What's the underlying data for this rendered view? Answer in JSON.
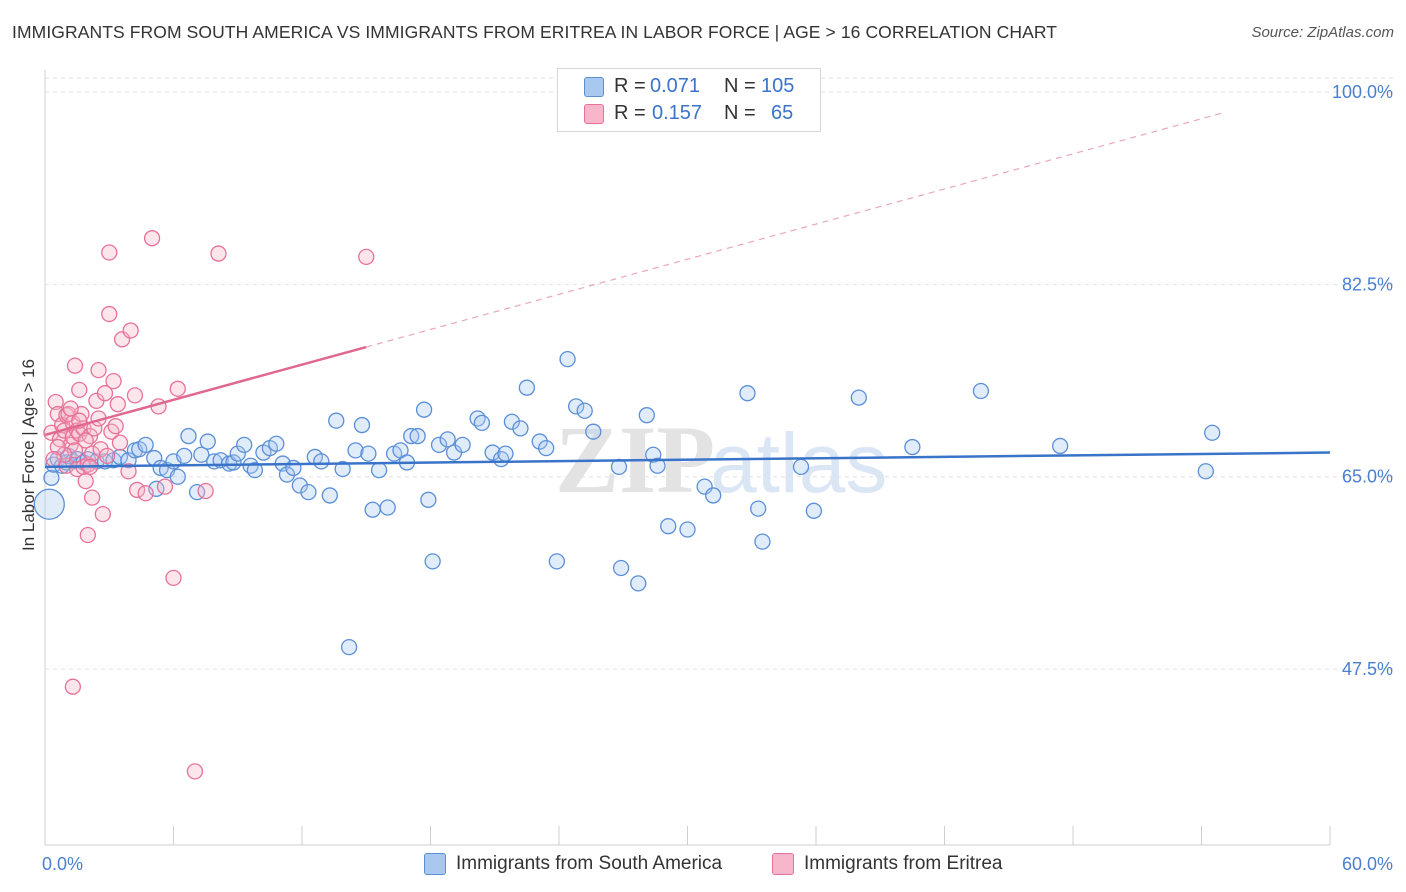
{
  "title": "IMMIGRANTS FROM SOUTH AMERICA VS IMMIGRANTS FROM ERITREA IN LABOR FORCE | AGE > 16 CORRELATION CHART",
  "source": "Source: ZipAtlas.com",
  "watermark": {
    "zip": "ZIP",
    "atlas": "atlas"
  },
  "legend_top": {
    "rows": [
      {
        "r_label": "R =",
        "r_value": "0.071",
        "n_label": "N =",
        "n_value": "105"
      },
      {
        "r_label": "R =",
        "r_value": "0.157",
        "n_label": "N =",
        "n_value": "65"
      }
    ]
  },
  "legend_bottom": {
    "items": [
      {
        "label": "Immigrants from South America"
      },
      {
        "label": "Immigrants from Eritrea"
      }
    ]
  },
  "colors": {
    "blue_fill": "#a9c8f0",
    "blue_stroke": "#5a8fd8",
    "blue_line": "#3a74c9",
    "pink_fill": "#f7b6c9",
    "pink_stroke": "#e8719a",
    "pink_line": "#e06890",
    "axis_text": "#4a7fd0",
    "grid": "#e2e2e2"
  },
  "chart_data": {
    "type": "scatter",
    "title": "IMMIGRANTS FROM SOUTH AMERICA VS IMMIGRANTS FROM ERITREA IN LABOR FORCE | AGE > 16 CORRELATION CHART",
    "xlabel": "",
    "ylabel": "In Labor Force | Age > 16",
    "xlim": [
      0,
      60
    ],
    "ylim": [
      31.5,
      102
    ],
    "x_tick_labels": [
      {
        "value": 0,
        "label": "0.0%"
      },
      {
        "value": 60,
        "label": "60.0%"
      }
    ],
    "x_minor_ticks": [
      6,
      12,
      18,
      24,
      30,
      36,
      42,
      48,
      54,
      60
    ],
    "y_ticks": [
      {
        "value": 100,
        "label": "100.0%"
      },
      {
        "value": 82.5,
        "label": "82.5%"
      },
      {
        "value": 65,
        "label": "65.0%"
      },
      {
        "value": 47.5,
        "label": "47.5%"
      }
    ],
    "series": [
      {
        "name": "Immigrants from South America",
        "R": 0.071,
        "N": 105,
        "trend": {
          "x": [
            0,
            60
          ],
          "y": [
            65.9,
            67.2
          ]
        },
        "points": [
          [
            0.3,
            64.9
          ],
          [
            0.4,
            66.1
          ],
          [
            0.6,
            66.6
          ],
          [
            0.8,
            66.0
          ],
          [
            1.0,
            66.3
          ],
          [
            1.1,
            66.9
          ],
          [
            1.3,
            66.4
          ],
          [
            1.5,
            66.6
          ],
          [
            1.8,
            66.3
          ],
          [
            2.0,
            66.6
          ],
          [
            2.4,
            66.4
          ],
          [
            2.8,
            66.4
          ],
          [
            3.2,
            66.5
          ],
          [
            3.5,
            66.8
          ],
          [
            3.9,
            66.5
          ],
          [
            4.2,
            67.4
          ],
          [
            4.4,
            67.5
          ],
          [
            4.7,
            67.9
          ],
          [
            5.1,
            66.7
          ],
          [
            5.2,
            63.9
          ],
          [
            5.4,
            65.8
          ],
          [
            5.7,
            65.6
          ],
          [
            6.0,
            66.4
          ],
          [
            6.2,
            65.0
          ],
          [
            6.5,
            66.9
          ],
          [
            6.7,
            68.7
          ],
          [
            7.1,
            63.6
          ],
          [
            7.3,
            67.0
          ],
          [
            7.6,
            68.2
          ],
          [
            7.9,
            66.4
          ],
          [
            8.2,
            66.5
          ],
          [
            8.6,
            66.2
          ],
          [
            8.8,
            66.3
          ],
          [
            9.0,
            67.1
          ],
          [
            9.3,
            67.9
          ],
          [
            9.6,
            66.0
          ],
          [
            9.8,
            65.6
          ],
          [
            10.2,
            67.2
          ],
          [
            10.5,
            67.6
          ],
          [
            10.8,
            68.0
          ],
          [
            11.1,
            66.2
          ],
          [
            11.3,
            65.2
          ],
          [
            11.6,
            65.8
          ],
          [
            11.9,
            64.2
          ],
          [
            12.3,
            63.6
          ],
          [
            12.6,
            66.8
          ],
          [
            12.9,
            66.4
          ],
          [
            13.3,
            63.3
          ],
          [
            13.6,
            70.1
          ],
          [
            13.9,
            65.7
          ],
          [
            14.2,
            49.5
          ],
          [
            14.5,
            67.4
          ],
          [
            14.8,
            69.7
          ],
          [
            15.1,
            67.1
          ],
          [
            15.3,
            62.0
          ],
          [
            15.6,
            65.6
          ],
          [
            16.0,
            62.2
          ],
          [
            16.3,
            67.1
          ],
          [
            16.6,
            67.4
          ],
          [
            16.9,
            66.3
          ],
          [
            17.1,
            68.7
          ],
          [
            17.4,
            68.7
          ],
          [
            17.7,
            71.1
          ],
          [
            17.9,
            62.9
          ],
          [
            18.1,
            57.3
          ],
          [
            18.4,
            67.9
          ],
          [
            18.8,
            68.4
          ],
          [
            19.1,
            67.2
          ],
          [
            19.5,
            67.9
          ],
          [
            20.2,
            70.3
          ],
          [
            20.4,
            69.9
          ],
          [
            20.9,
            67.2
          ],
          [
            21.3,
            66.6
          ],
          [
            21.5,
            67.1
          ],
          [
            21.8,
            70.0
          ],
          [
            22.2,
            69.4
          ],
          [
            22.5,
            73.1
          ],
          [
            23.1,
            68.2
          ],
          [
            23.4,
            67.6
          ],
          [
            23.9,
            57.3
          ],
          [
            24.4,
            75.7
          ],
          [
            24.8,
            71.4
          ],
          [
            25.2,
            71.0
          ],
          [
            25.6,
            69.1
          ],
          [
            26.8,
            65.9
          ],
          [
            26.9,
            56.7
          ],
          [
            27.7,
            55.3
          ],
          [
            28.1,
            70.6
          ],
          [
            28.4,
            67.0
          ],
          [
            28.6,
            66.0
          ],
          [
            29.1,
            60.5
          ],
          [
            30.0,
            60.2
          ],
          [
            30.8,
            64.1
          ],
          [
            31.2,
            63.3
          ],
          [
            32.8,
            72.6
          ],
          [
            33.3,
            62.1
          ],
          [
            33.5,
            59.1
          ],
          [
            35.3,
            65.9
          ],
          [
            35.9,
            61.9
          ],
          [
            38.0,
            72.2
          ],
          [
            40.5,
            67.7
          ],
          [
            43.7,
            72.8
          ],
          [
            47.4,
            67.8
          ],
          [
            54.2,
            65.5
          ],
          [
            54.5,
            69.0
          ]
        ],
        "large_points": [
          [
            0.2,
            62.5
          ]
        ]
      },
      {
        "name": "Immigrants from Eritrea",
        "R": 0.157,
        "N": 65,
        "trend": {
          "x": [
            0,
            15
          ],
          "y": [
            68.8,
            76.8
          ]
        },
        "trend_extension": {
          "x": [
            15,
            55
          ],
          "y": [
            76.8,
            98.1
          ]
        },
        "points": [
          [
            0.3,
            69.0
          ],
          [
            0.5,
            71.8
          ],
          [
            0.6,
            70.7
          ],
          [
            0.7,
            68.4
          ],
          [
            0.8,
            69.7
          ],
          [
            0.9,
            69.2
          ],
          [
            1.0,
            70.6
          ],
          [
            1.0,
            66.0
          ],
          [
            1.1,
            70.7
          ],
          [
            1.2,
            67.9
          ],
          [
            1.3,
            69.9
          ],
          [
            1.3,
            68.6
          ],
          [
            1.4,
            75.1
          ],
          [
            1.4,
            67.4
          ],
          [
            1.5,
            69.2
          ],
          [
            1.5,
            65.7
          ],
          [
            1.6,
            72.9
          ],
          [
            1.6,
            68.9
          ],
          [
            1.7,
            70.7
          ],
          [
            1.8,
            69.4
          ],
          [
            1.8,
            65.9
          ],
          [
            1.9,
            64.6
          ],
          [
            2.0,
            66.1
          ],
          [
            2.0,
            59.7
          ],
          [
            2.1,
            68.7
          ],
          [
            2.2,
            67.1
          ],
          [
            2.2,
            63.1
          ],
          [
            2.3,
            69.4
          ],
          [
            2.4,
            71.9
          ],
          [
            2.5,
            74.7
          ],
          [
            2.6,
            67.5
          ],
          [
            2.7,
            61.6
          ],
          [
            2.8,
            72.6
          ],
          [
            3.0,
            85.4
          ],
          [
            3.0,
            79.8
          ],
          [
            3.1,
            69.1
          ],
          [
            3.2,
            73.7
          ],
          [
            3.4,
            71.6
          ],
          [
            3.5,
            68.1
          ],
          [
            3.6,
            77.5
          ],
          [
            3.9,
            65.5
          ],
          [
            4.0,
            78.3
          ],
          [
            4.2,
            72.4
          ],
          [
            4.3,
            63.8
          ],
          [
            4.7,
            63.5
          ],
          [
            5.0,
            86.7
          ],
          [
            5.3,
            71.4
          ],
          [
            5.6,
            64.1
          ],
          [
            6.0,
            55.8
          ],
          [
            6.2,
            73.0
          ],
          [
            7.0,
            38.2
          ],
          [
            7.5,
            63.7
          ],
          [
            8.1,
            85.3
          ],
          [
            15.0,
            85.0
          ],
          [
            1.3,
            45.9
          ],
          [
            0.9,
            67.0
          ],
          [
            1.6,
            70.1
          ],
          [
            2.9,
            66.9
          ],
          [
            0.6,
            67.7
          ],
          [
            1.9,
            68.3
          ],
          [
            2.5,
            70.3
          ],
          [
            0.4,
            66.6
          ],
          [
            1.2,
            71.2
          ],
          [
            3.3,
            69.6
          ],
          [
            2.1,
            65.9
          ]
        ],
        "large_points": []
      }
    ]
  }
}
